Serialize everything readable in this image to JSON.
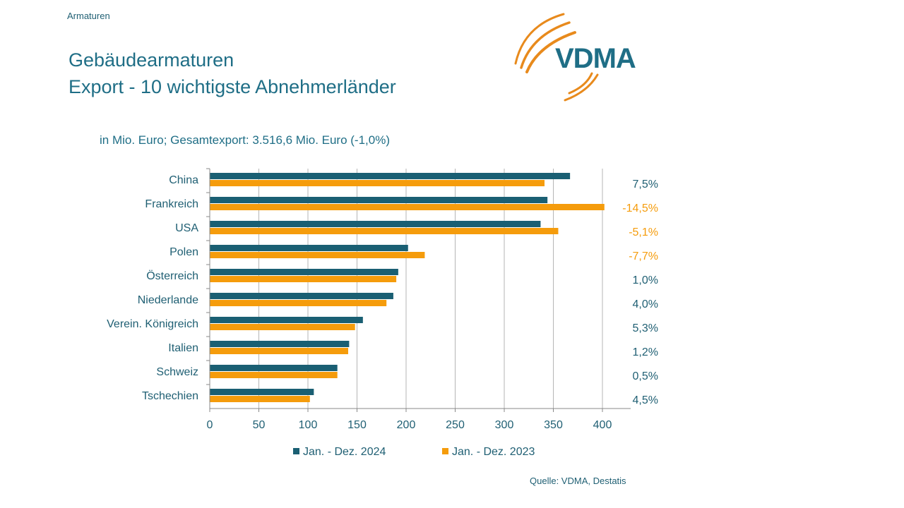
{
  "header": {
    "topic": "Armaturen",
    "title_line1": "Gebäudearmaturen",
    "title_line2": "Export - 10 wichtigste Abnehmerländer",
    "subtitle": "in Mio. Euro; Gesamtexport: 3.516,6 Mio. Euro (-1,0%)"
  },
  "logo": {
    "text": "VDMA",
    "arc_color": "#e88a1c",
    "text_color": "#1f6e86"
  },
  "source": "Quelle: VDMA, Destatis",
  "colors": {
    "series_2024": "#1a5f73",
    "series_2023": "#f59c0c",
    "positive": "#1f5f73",
    "negative": "#f59c0c"
  },
  "chart_data": {
    "type": "bar",
    "orientation": "horizontal",
    "categories": [
      "China",
      "Frankreich",
      "USA",
      "Polen",
      "Österreich",
      "Niederlande",
      "Verein. Königreich",
      "Italien",
      "Schweiz",
      "Tschechien"
    ],
    "series": [
      {
        "name": "Jan. - Dez. 2024",
        "values": [
          367,
          344,
          337,
          202,
          192,
          187,
          156,
          142,
          130,
          106
        ]
      },
      {
        "name": "Jan. - Dez. 2023",
        "values": [
          341,
          402,
          355,
          219,
          190,
          180,
          148,
          141,
          130,
          102
        ]
      }
    ],
    "changes": [
      "7,5%",
      "-14,5%",
      "-5,1%",
      "-7,7%",
      "1,0%",
      "4,0%",
      "5,3%",
      "1,2%",
      "0,5%",
      "4,5%"
    ],
    "xlim": [
      0,
      400
    ],
    "xticks": [
      0,
      50,
      100,
      150,
      200,
      250,
      300,
      350,
      400
    ],
    "grid": true,
    "legend_position": "bottom"
  }
}
